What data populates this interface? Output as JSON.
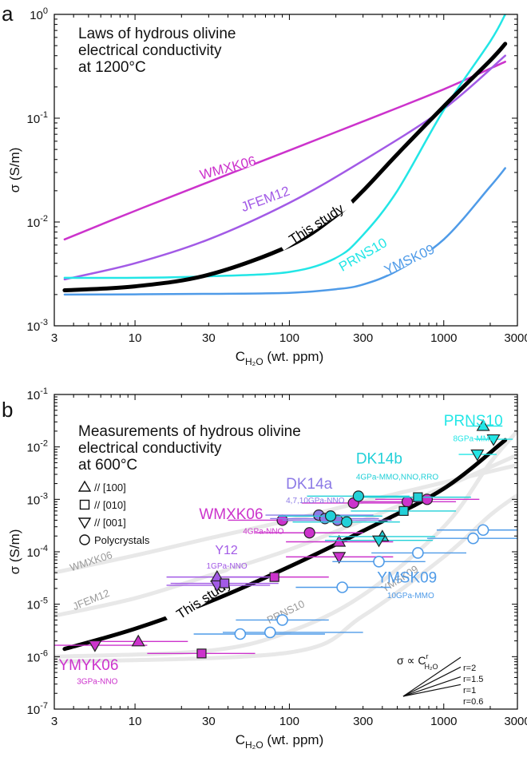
{
  "chart_data": [
    {
      "panel_label": "a",
      "type": "line",
      "title_lines": [
        "Laws of hydrous olivine",
        "electrical conductivity",
        "at 1200°C"
      ],
      "xlabel": {
        "main": "C",
        "sub": "H₂O",
        "unit": " (wt. ppm)"
      },
      "ylabel": "σ (S/m)",
      "xscale": "log",
      "yscale": "log",
      "xlim": [
        3,
        3000
      ],
      "ylim": [
        0.001,
        1
      ],
      "x_ticks": [
        {
          "v": 3,
          "t": "3"
        },
        {
          "v": 10,
          "t": "10"
        },
        {
          "v": 30,
          "t": "30"
        },
        {
          "v": 100,
          "t": "100"
        },
        {
          "v": 300,
          "t": "300"
        },
        {
          "v": 1000,
          "t": "1000"
        },
        {
          "v": 3000,
          "t": "3000"
        }
      ],
      "y_ticks": [
        {
          "v": 0.001,
          "b": "10",
          "e": "-3"
        },
        {
          "v": 0.01,
          "b": "10",
          "e": "-2"
        },
        {
          "v": 0.1,
          "b": "10",
          "e": "-1"
        },
        {
          "v": 1,
          "b": "10",
          "e": "0"
        }
      ],
      "series": [
        {
          "name": "WMXK06",
          "color": "#cc33cc",
          "width": 2.5,
          "label_x": 40,
          "label_y": 0.033,
          "label_rot": -15,
          "x": [
            3.5,
            10,
            30,
            100,
            300,
            1000,
            2500
          ],
          "y": [
            0.0068,
            0.0128,
            0.0243,
            0.049,
            0.093,
            0.19,
            0.35
          ]
        },
        {
          "name": "JFEM12",
          "color": "#a25ae6",
          "width": 2.5,
          "label_x": 70,
          "label_y": 0.0165,
          "label_rot": -20,
          "x": [
            3.5,
            10,
            30,
            100,
            300,
            1000,
            2500
          ],
          "y": [
            0.0028,
            0.004,
            0.0068,
            0.0153,
            0.039,
            0.123,
            0.4
          ]
        },
        {
          "name": "PRNS10",
          "color": "#22e6e6",
          "width": 2.5,
          "label_x": 300,
          "label_y": 0.0048,
          "label_rot": -30,
          "x": [
            3.5,
            10,
            30,
            100,
            200,
            300,
            500,
            1000,
            2000,
            2500
          ],
          "y": [
            0.0029,
            0.0029,
            0.003,
            0.0033,
            0.0045,
            0.0075,
            0.02,
            0.12,
            0.55,
            1.0
          ]
        },
        {
          "name": "YMSK09",
          "color": "#4f9be8",
          "width": 2.5,
          "label_x": 600,
          "label_y": 0.0043,
          "label_rot": -25,
          "x": [
            3.5,
            10,
            30,
            100,
            200,
            300,
            500,
            1000,
            2000,
            2500
          ],
          "y": [
            0.002,
            0.00201,
            0.00203,
            0.00208,
            0.00225,
            0.0025,
            0.0034,
            0.0068,
            0.022,
            0.033
          ]
        },
        {
          "name": "This study",
          "color": "#000000",
          "width": 5,
          "label_x": 150,
          "label_y": 0.0095,
          "label_rot": -33,
          "x": [
            3.5,
            10,
            30,
            100,
            200,
            300,
            500,
            1000,
            2000,
            2500
          ],
          "y": [
            0.0022,
            0.0024,
            0.0031,
            0.0059,
            0.0115,
            0.02,
            0.045,
            0.13,
            0.36,
            0.52
          ]
        }
      ]
    },
    {
      "panel_label": "b",
      "type": "scatter",
      "title_lines": [
        "Measurements of hydrous olivine",
        "electrical conductivity",
        "at 600°C"
      ],
      "xlabel": {
        "main": "C",
        "sub": "H₂O",
        "unit": " (wt. ppm)"
      },
      "ylabel": "σ (S/m)",
      "xscale": "log",
      "yscale": "log",
      "xlim": [
        3,
        3000
      ],
      "ylim": [
        1e-07,
        0.1
      ],
      "x_ticks": [
        {
          "v": 3,
          "t": "3"
        },
        {
          "v": 10,
          "t": "10"
        },
        {
          "v": 30,
          "t": "30"
        },
        {
          "v": 100,
          "t": "100"
        },
        {
          "v": 300,
          "t": "300"
        },
        {
          "v": 1000,
          "t": "1000"
        },
        {
          "v": 3000,
          "t": "3000"
        }
      ],
      "y_ticks": [
        {
          "v": 1e-07,
          "b": "10",
          "e": "-7"
        },
        {
          "v": 1e-06,
          "b": "10",
          "e": "-6"
        },
        {
          "v": 1e-05,
          "b": "10",
          "e": "-5"
        },
        {
          "v": 0.0001,
          "b": "10",
          "e": "-4"
        },
        {
          "v": 0.001,
          "b": "10",
          "e": "-3"
        },
        {
          "v": 0.01,
          "b": "10",
          "e": "-2"
        },
        {
          "v": 0.1,
          "b": "10",
          "e": "-1"
        }
      ],
      "legend": [
        {
          "symbol": "triangle-up",
          "text": "// [100]"
        },
        {
          "symbol": "square",
          "text": "// [010]"
        },
        {
          "symbol": "triangle-down",
          "text": "// [001]"
        },
        {
          "symbol": "circle",
          "text": "Polycrystals"
        }
      ],
      "background_curves": [
        {
          "name": "WMXK06",
          "x": [
            3,
            10,
            30,
            100,
            300,
            1000,
            3000
          ],
          "y": [
            4e-05,
            8.5e-05,
            0.00018,
            0.0004,
            0.0009,
            0.0021,
            0.0045
          ]
        },
        {
          "name": "JFEM12",
          "x": [
            3,
            10,
            30,
            100,
            300,
            1000,
            3000
          ],
          "y": [
            6e-06,
            1.3e-05,
            3.5e-05,
            0.00011,
            0.0004,
            0.0017,
            0.007
          ]
        },
        {
          "name": "PRNS10",
          "x": [
            3,
            30,
            100,
            300,
            1000,
            2000,
            3000
          ],
          "y": [
            1e-06,
            1.3e-06,
            3e-06,
            1.5e-05,
            0.0003,
            0.005,
            0.02
          ]
        },
        {
          "name": "YMSK09",
          "x": [
            3,
            100,
            300,
            1000,
            2000,
            3000
          ],
          "y": [
            8e-07,
            1.2e-06,
            6e-06,
            8e-05,
            0.0005,
            0.0012
          ]
        }
      ],
      "background_labels": [
        {
          "text": "WMXK06",
          "x": 5.2,
          "y": 6.5e-05,
          "rot": -18
        },
        {
          "text": "JFEM12",
          "x": 5.2,
          "y": 1.2e-05,
          "rot": -22
        },
        {
          "text": "PRNS10",
          "x": 95,
          "y": 7e-06,
          "rot": -26
        },
        {
          "text": "YMSK09",
          "x": 520,
          "y": 3e-05,
          "rot": -32
        }
      ],
      "this_study": {
        "name": "This study",
        "x": [
          3.5,
          10,
          30,
          100,
          300,
          1000,
          2500
        ],
        "y": [
          1.4e-06,
          3.4e-06,
          1.1e-05,
          5.2e-05,
          0.00025,
          0.0016,
          0.0135
        ],
        "label_x": 28,
        "label_y": 1.25e-05,
        "label_rot": -33
      },
      "groups": [
        {
          "name": "WMXK06",
          "sub": "4GPa-NNO",
          "color": "#cc33cc",
          "label_x": 26,
          "label_y": 0.00042,
          "sub_x": 50,
          "sub_y": 0.00022,
          "label_size": 19,
          "points": [
            {
              "s": "circle",
              "x": 90,
              "y": 0.0004,
              "xerr": [
                40,
                200
              ]
            },
            {
              "s": "circle",
              "x": 135,
              "y": 0.00023,
              "xerr": [
                60,
                300
              ]
            },
            {
              "s": "circle",
              "x": 260,
              "y": 0.00085,
              "xerr": [
                120,
                560
              ]
            },
            {
              "s": "circle",
              "x": 580,
              "y": 0.0009,
              "xerr": [
                260,
                1200
              ]
            },
            {
              "s": "circle",
              "x": 780,
              "y": 0.001,
              "xerr": [
                360,
                1700
              ]
            },
            {
              "s": "triangle-up",
              "x": 210,
              "y": 0.000155,
              "xerr": [
                95,
                470
              ]
            },
            {
              "s": "triangle-down",
              "x": 210,
              "y": 8e-05,
              "xerr": [
                95,
                470
              ]
            },
            {
              "s": "triangle-up",
              "x": 10.5,
              "y": 1.95e-06,
              "xerr": [
                5,
                22
              ]
            },
            {
              "s": "triangle-down",
              "x": 5.5,
              "y": 1.65e-06,
              "xerr": [
                2.6,
                12
              ]
            },
            {
              "s": "square",
              "x": 27,
              "y": 1.15e-06,
              "xerr": [
                12,
                60
              ]
            },
            {
              "s": "square",
              "x": 80,
              "y": 3.3e-05,
              "xerr": [
                36,
                180
              ]
            }
          ]
        },
        {
          "name": "DK14a",
          "sub": "4,7,10GPa-NNO",
          "color": "#8c7ae6",
          "label_x": 95,
          "label_y": 0.0016,
          "sub_x": 95,
          "sub_y": 0.00085,
          "label_size": 19,
          "points": [
            {
              "s": "circle",
              "x": 155,
              "y": 0.0005,
              "xerr": [
                70,
                350
              ]
            },
            {
              "s": "circle",
              "x": 170,
              "y": 0.00043,
              "xerr": [
                75,
                380
              ]
            },
            {
              "s": "circle",
              "x": 205,
              "y": 0.0004,
              "xerr": [
                90,
                460
              ]
            }
          ]
        },
        {
          "name": "Y12",
          "sub": "1GPa-NNO",
          "color": "#a25ae6",
          "label_x": 33,
          "label_y": 9e-05,
          "sub_x": 29,
          "sub_y": 4.8e-05,
          "label_size": 16,
          "points": [
            {
              "s": "triangle-up",
              "x": 34,
              "y": 3.3e-05,
              "xerr": [
                16,
                75
              ]
            },
            {
              "s": "triangle-down",
              "x": 34,
              "y": 2.3e-05,
              "xerr": [
                16,
                75
              ]
            },
            {
              "s": "square",
              "x": 38,
              "y": 2.5e-05,
              "xerr": [
                17,
                85
              ]
            }
          ]
        },
        {
          "name": "DK14b",
          "sub": "4GPa-MMO,NNO,RRO",
          "color": "#22d0d8",
          "label_x": 270,
          "label_y": 0.0048,
          "sub_x": 270,
          "sub_y": 0.0024,
          "label_size": 19,
          "points": [
            {
              "s": "circle",
              "x": 280,
              "y": 0.00115,
              "xerr": [
                130,
                600
              ]
            },
            {
              "s": "circle",
              "x": 185,
              "y": 0.00048,
              "xerr": [
                85,
                400
              ]
            },
            {
              "s": "circle",
              "x": 235,
              "y": 0.00037,
              "xerr": [
                105,
                520
              ]
            },
            {
              "s": "square",
              "x": 550,
              "y": 0.0006,
              "xerr": [
                250,
                1200
              ]
            },
            {
              "s": "square",
              "x": 680,
              "y": 0.0011,
              "xerr": [
                300,
                1500
              ]
            },
            {
              "s": "triangle-up",
              "x": 400,
              "y": 0.000195,
              "xerr": [
                180,
                880
              ]
            },
            {
              "s": "triangle-down",
              "x": 380,
              "y": 0.000165,
              "xerr": [
                170,
                850
              ]
            }
          ]
        },
        {
          "name": "PRNS10",
          "sub": "8GPa-MMO",
          "color": "#22e6e6",
          "label_x": 1000,
          "label_y": 0.0255,
          "sub_x": 1150,
          "sub_y": 0.0128,
          "label_size": 19,
          "points": [
            {
              "s": "triangle-up",
              "x": 1800,
              "y": 0.025,
              "xerr": [
                1400,
                2400
              ]
            },
            {
              "s": "triangle-down",
              "x": 2100,
              "y": 0.014,
              "xerr": [
                1600,
                2800
              ]
            },
            {
              "s": "triangle-down",
              "x": 1650,
              "y": 0.0072,
              "xerr": [
                1250,
                2200
              ]
            }
          ]
        },
        {
          "name": "YMSK09",
          "sub": "10GPa-MMO",
          "color": "#4f9be8",
          "label_x": 370,
          "label_y": 2.6e-05,
          "sub_x": 430,
          "sub_y": 1.3e-05,
          "label_size": 19,
          "points": [
            {
              "s": "hcircle",
              "x": 1800,
              "y": 0.00026,
              "xerr": [
                900,
                3000
              ]
            },
            {
              "s": "hcircle",
              "x": 1550,
              "y": 0.00018,
              "xerr": [
                780,
                3000
              ]
            },
            {
              "s": "hcircle",
              "x": 680,
              "y": 9.5e-05,
              "xerr": [
                340,
                1400
              ]
            },
            {
              "s": "hcircle",
              "x": 380,
              "y": 6.5e-05,
              "xerr": [
                190,
                760
              ]
            },
            {
              "s": "hcircle",
              "x": 220,
              "y": 2.1e-05,
              "xerr": [
                110,
                450
              ]
            },
            {
              "s": "hcircle",
              "x": 90,
              "y": 5e-06,
              "xerr": [
                45,
                180
              ]
            },
            {
              "s": "hcircle",
              "x": 75,
              "y": 2.9e-06,
              "xerr": [
                37,
                300
              ]
            },
            {
              "s": "hcircle",
              "x": 48,
              "y": 2.7e-06,
              "xerr": [
                24,
                170
              ]
            }
          ]
        },
        {
          "name": "YMYK06",
          "sub": "3GPa-NNO",
          "color": "#cc33cc",
          "label_x": 3.2,
          "label_y": 5.6e-07,
          "sub_x": 4.2,
          "sub_y": 3e-07,
          "label_size": 19,
          "points": []
        }
      ],
      "slope_legend": {
        "formula_main": "σ ∝ C",
        "formula_sup": "r",
        "formula_sub": "H₂O",
        "lines": [
          {
            "r": "r=2",
            "slope": 2
          },
          {
            "r": "r=1.5",
            "slope": 1.5
          },
          {
            "r": "r=1",
            "slope": 1
          },
          {
            "r": "r=0.6",
            "slope": 0.6
          }
        ]
      }
    }
  ]
}
